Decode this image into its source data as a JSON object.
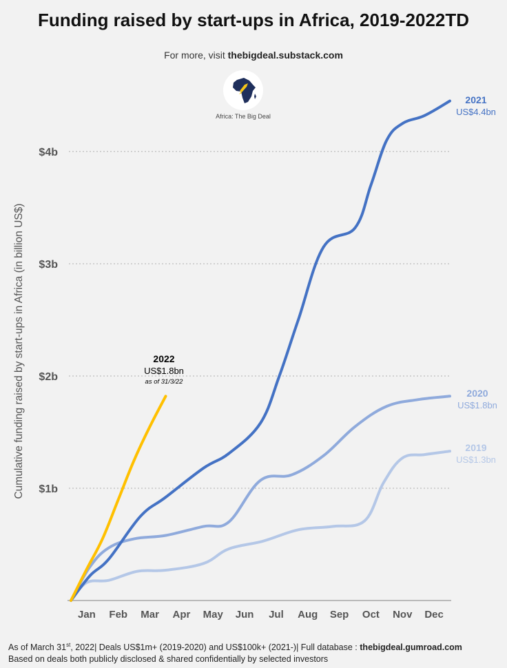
{
  "header": {
    "title": "Funding raised by start-ups in Africa, 2019-2022TD",
    "subtitle_prefix": "For more, visit ",
    "subtitle_link": "thebigdeal.substack.com"
  },
  "logo": {
    "icon": "africa-map-rocket-icon",
    "caption": "Africa: The Big Deal"
  },
  "footer": {
    "line1_prefix": "As of March 31",
    "line1_sup": "st",
    "line1_mid": ", 2022| Deals US$1m+ (2019-2020) and US$100k+ (2021-)| Full database : ",
    "line1_link": "thebigdeal.gumroad.com",
    "line2": "Based on deals both publicly disclosed & shared confidentially by selected investors"
  },
  "chart_data": {
    "type": "line",
    "title": "Funding raised by start-ups in Africa, 2019-2022TD",
    "ylabel": "Cumulative funding raised by start-ups in Africa (in billion US$)",
    "xlabel": "",
    "categories": [
      "Jan",
      "Feb",
      "Mar",
      "Apr",
      "May",
      "Jun",
      "Jul",
      "Aug",
      "Sep",
      "Oct",
      "Nov",
      "Dec"
    ],
    "y_ticks": [
      {
        "value": 1,
        "label": "$1b"
      },
      {
        "value": 2,
        "label": "$2b"
      },
      {
        "value": 3,
        "label": "$3b"
      },
      {
        "value": 4,
        "label": "$4b"
      }
    ],
    "ylim": [
      0,
      4.6
    ],
    "grid": "dotted horizontal",
    "series": [
      {
        "name": "2019",
        "label": "US$1.3bn",
        "color": "#b4c7e7",
        "x": [
          0,
          0.5,
          1.2,
          2.1,
          3.0,
          4.2,
          5.0,
          6.1,
          7.2,
          8.3,
          9.3,
          9.9,
          10.5,
          11.2,
          12
        ],
        "values": [
          0,
          0.16,
          0.18,
          0.26,
          0.27,
          0.33,
          0.46,
          0.53,
          0.63,
          0.66,
          0.71,
          1.05,
          1.27,
          1.3,
          1.33
        ]
      },
      {
        "name": "2020",
        "label": "US$1.8bn",
        "color": "#8faadc",
        "x": [
          0,
          0.6,
          1.2,
          2.0,
          3.0,
          4.2,
          5.0,
          6.0,
          7.0,
          8.0,
          9.0,
          10.0,
          11.0,
          12
        ],
        "values": [
          0,
          0.3,
          0.47,
          0.55,
          0.58,
          0.66,
          0.7,
          1.07,
          1.12,
          1.29,
          1.55,
          1.73,
          1.79,
          1.82
        ]
      },
      {
        "name": "2021",
        "label": "US$4.4bn",
        "color": "#4472c4",
        "x": [
          0,
          0.6,
          1.2,
          2.2,
          3.0,
          4.2,
          5.0,
          6.0,
          6.6,
          7.2,
          8.0,
          9.0,
          9.5,
          10.0,
          10.5,
          11.2,
          12
        ],
        "values": [
          0,
          0.22,
          0.37,
          0.75,
          0.92,
          1.18,
          1.31,
          1.58,
          2.0,
          2.5,
          3.15,
          3.32,
          3.7,
          4.1,
          4.25,
          4.32,
          4.45
        ]
      },
      {
        "name": "2022",
        "label": "US$1.8bn",
        "note": "as of 31/3/22",
        "color": "#ffc000",
        "x": [
          0,
          0.5,
          1.0,
          1.5,
          2.0,
          2.5,
          3.0
        ],
        "values": [
          0,
          0.28,
          0.55,
          0.9,
          1.25,
          1.55,
          1.82
        ]
      }
    ]
  }
}
